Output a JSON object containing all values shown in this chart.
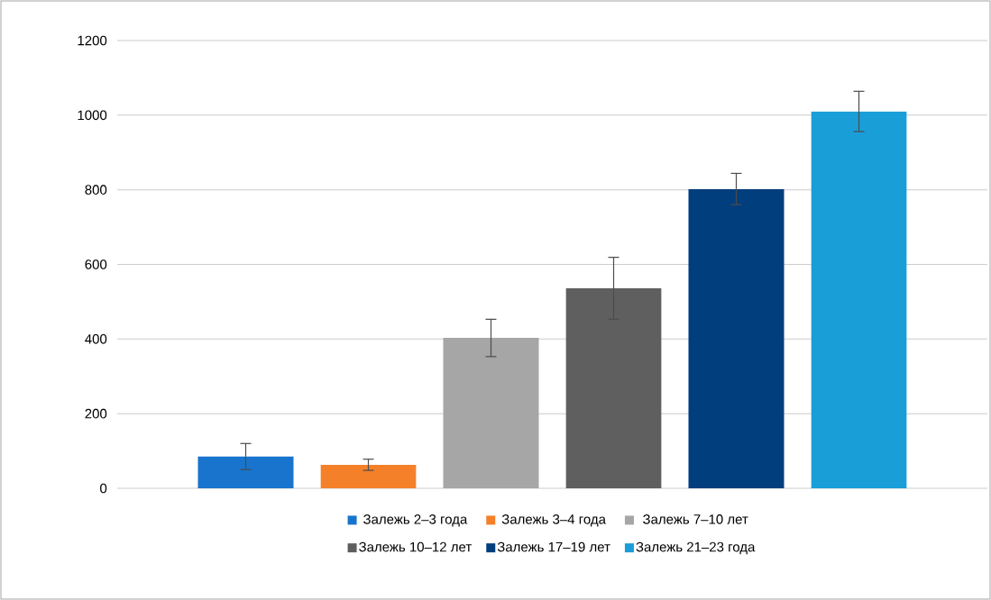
{
  "chart_data": {
    "type": "bar",
    "categories": [
      null
    ],
    "series": [
      {
        "name": "Залежь 2–3 года",
        "color": "#1874cd",
        "values": [
          85
        ],
        "errors": [
          35
        ]
      },
      {
        "name": "Залежь 3–4 года",
        "color": "#f5802a",
        "values": [
          63
        ],
        "errors": [
          15
        ]
      },
      {
        "name": "Залежь 7–10 лет",
        "color": "#a6a6a6",
        "values": [
          403
        ],
        "errors": [
          50
        ]
      },
      {
        "name": "Залежь 10–12 лет",
        "color": "#5f5f5f",
        "values": [
          536
        ],
        "errors": [
          83
        ]
      },
      {
        "name": "Залежь 17–19 лет",
        "color": "#003e7e",
        "values": [
          802
        ],
        "errors": [
          42
        ]
      },
      {
        "name": "Залежь 21–23 года",
        "color": "#199ed8",
        "values": [
          1010
        ],
        "errors": [
          54
        ]
      }
    ],
    "ylim": [
      0,
      1200
    ],
    "yticks": [
      0,
      200,
      400,
      600,
      800,
      1000,
      1200
    ],
    "grid": "y",
    "legend": "bottom",
    "tick_labels": "y"
  }
}
